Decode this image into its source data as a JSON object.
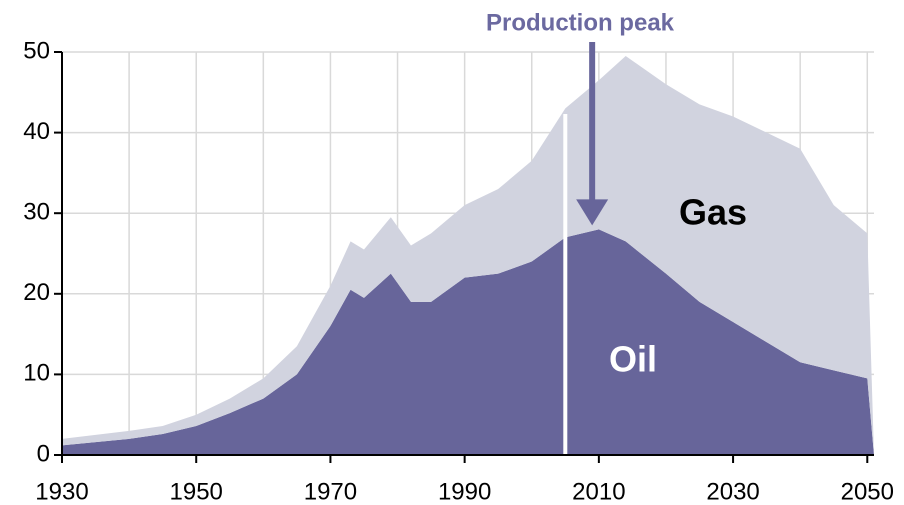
{
  "chart_data": {
    "type": "area",
    "stacked": true,
    "x": [
      1930,
      1935,
      1940,
      1945,
      1950,
      1955,
      1960,
      1965,
      1970,
      1973,
      1975,
      1979,
      1982,
      1985,
      1990,
      1995,
      2000,
      2005,
      2010,
      2014,
      2020,
      2025,
      2030,
      2040,
      2045,
      2050,
      2051
    ],
    "series": [
      {
        "name": "Oil",
        "color": "#67659a",
        "values": [
          1.2,
          1.6,
          2.0,
          2.6,
          3.6,
          5.2,
          7.0,
          10,
          16,
          20.5,
          19.5,
          22.5,
          19,
          19,
          22,
          22.5,
          24,
          27,
          28,
          26.5,
          22.5,
          19,
          16.5,
          11.5,
          10.5,
          9.5,
          0
        ]
      },
      {
        "name": "Gas",
        "color": "#d1d3df",
        "values": [
          0.8,
          0.9,
          1.0,
          1.0,
          1.4,
          1.8,
          2.5,
          3.5,
          5,
          6,
          6,
          7,
          7,
          8.5,
          9,
          10.5,
          12.5,
          16,
          18.5,
          23,
          23.5,
          24.5,
          25.5,
          26.5,
          20.5,
          18,
          0
        ]
      }
    ],
    "xlim": [
      1930,
      2051
    ],
    "xticks": [
      1930,
      1950,
      1970,
      1990,
      2010,
      2030,
      2050
    ],
    "xgrid": [
      1930,
      1940,
      1950,
      1960,
      1970,
      1980,
      1990,
      2000,
      2010,
      2020,
      2030,
      2040,
      2050
    ],
    "ylim": [
      0,
      50
    ],
    "yticks": [
      0,
      10,
      20,
      30,
      40,
      50
    ],
    "grid": true,
    "marker_x": 2005,
    "annotation": {
      "text": "Production peak",
      "x": 2009,
      "y": 28
    }
  }
}
